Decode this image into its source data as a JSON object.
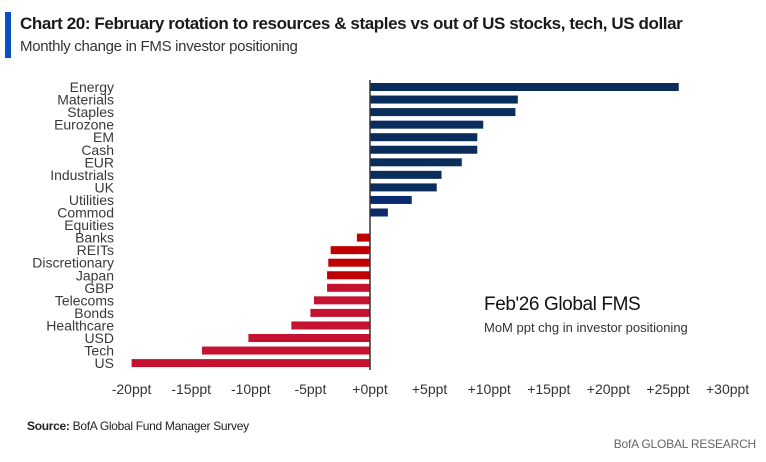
{
  "header": {
    "title": "Chart 20: February rotation to resources & staples vs out of US stocks, tech, US dollar",
    "subtitle": "Monthly change in FMS investor positioning"
  },
  "annotation": {
    "title": "Feb'26 Global FMS",
    "subtitle": "MoM ppt chg in investor positioning"
  },
  "footer": {
    "source_label": "Source:",
    "source_text": "BofA Global Fund Manager Survey",
    "brand": "BofA GLOBAL RESEARCH"
  },
  "colors": {
    "accent": "#0a4fc4",
    "positive": "#0b2d5c",
    "positive_alt": "#0a2a6e",
    "negative": "#c00000",
    "negative_alt": "#c41230",
    "axis": "#333333"
  },
  "chart_data": {
    "type": "bar",
    "orientation": "horizontal",
    "title": "Chart 20: February rotation to resources & staples vs out of US stocks, tech, US dollar",
    "subtitle": "Monthly change in FMS investor positioning",
    "xlabel": "",
    "ylabel": "",
    "xlim": [
      -20,
      30
    ],
    "xticks": [
      -20,
      -15,
      -10,
      -5,
      0,
      5,
      10,
      15,
      20,
      25,
      30
    ],
    "xtick_labels": [
      "-20ppt",
      "-15ppt",
      "-10ppt",
      "-5ppt",
      "+0ppt",
      "+5ppt",
      "+10ppt",
      "+15ppt",
      "+20ppt",
      "+25ppt",
      "+30ppt"
    ],
    "grid": false,
    "legend": "none",
    "categories": [
      "Energy",
      "Materials",
      "Staples",
      "Eurozone",
      "EM",
      "Cash",
      "EUR",
      "Industrials",
      "UK",
      "Utilities",
      "Commod",
      "Equities",
      "Banks",
      "REITs",
      "Discretionary",
      "Japan",
      "GBP",
      "Telecoms",
      "Bonds",
      "Healthcare",
      "USD",
      "Tech",
      "US"
    ],
    "values": [
      25.9,
      12.4,
      12.2,
      9.5,
      9.0,
      9.0,
      7.7,
      6.0,
      5.6,
      3.5,
      1.5,
      0.0,
      -1.1,
      -3.3,
      -3.5,
      -3.6,
      -3.6,
      -4.7,
      -5.0,
      -6.6,
      -10.2,
      -14.1,
      -20.0
    ],
    "annotations": [
      "Feb'26 Global FMS",
      "MoM ppt chg in investor positioning"
    ]
  }
}
